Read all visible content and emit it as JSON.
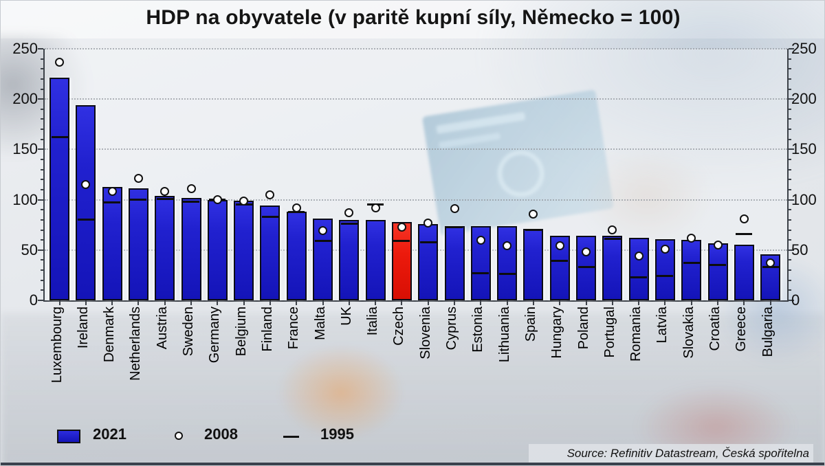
{
  "title": "HDP na obyvatele (v paritě kupní síly, Německo = 100)",
  "source": "Source: Refinitiv Datastream, Česká spořitelna",
  "legend": [
    {
      "label": "2021",
      "marker": "bar-square"
    },
    {
      "label": "2008",
      "marker": "circle"
    },
    {
      "label": "1995",
      "marker": "dash"
    }
  ],
  "colors": {
    "bar_blue": "#1d1dc8",
    "bar_highlight_red": "#ec1a0c",
    "marker_fill": "#ffffff",
    "marker_stroke": "#111111",
    "grid": "#9aa0a6",
    "text": "#111111"
  },
  "chart_data": {
    "type": "bar",
    "title": "HDP na obyvatele (v paritě kupní síly, Německo = 100)",
    "categories": [
      "Luxembourg",
      "Ireland",
      "Denmark",
      "Netherlands",
      "Austria",
      "Sweden",
      "Germany",
      "Belgium",
      "Finland",
      "France",
      "Malta",
      "UK",
      "Italia",
      "Czech",
      "Slovenia",
      "Cyprus",
      "Estonia",
      "Lithuania",
      "Spain",
      "Hungary",
      "Poland",
      "Portugal",
      "Romania",
      "Latvia",
      "Slovakia",
      "Croatia",
      "Greece",
      "Bulgaria"
    ],
    "series": [
      {
        "name": "2021",
        "style": "bar",
        "values": [
          221,
          194,
          113,
          111,
          104,
          102,
          100,
          99,
          94,
          88,
          81,
          80,
          80,
          78,
          76,
          74,
          74,
          74,
          71,
          64,
          64,
          64,
          62,
          61,
          60,
          57,
          55,
          46
        ]
      },
      {
        "name": "2008",
        "style": "circle-marker",
        "values": [
          237,
          115,
          108,
          121,
          108,
          111,
          100,
          99,
          105,
          92,
          69,
          87,
          92,
          73,
          77,
          91,
          60,
          54,
          86,
          54,
          48,
          70,
          44,
          51,
          62,
          55,
          81,
          37
        ]
      },
      {
        "name": "1995",
        "style": "dash-marker",
        "values": [
          162,
          80,
          97,
          100,
          101,
          98,
          100,
          95,
          83,
          88,
          59,
          76,
          95,
          59,
          58,
          73,
          27,
          26,
          70,
          39,
          33,
          61,
          23,
          24,
          37,
          35,
          66,
          33
        ]
      }
    ],
    "highlight_index": 13,
    "highlight_country": "Czech",
    "ylim": [
      0,
      250
    ],
    "yticks": [
      0,
      50,
      100,
      150,
      200,
      250
    ],
    "minor_tick_step": 10,
    "grid": "horizontal-dotted",
    "legend_position": "bottom-left",
    "xlabel": "",
    "ylabel": ""
  }
}
